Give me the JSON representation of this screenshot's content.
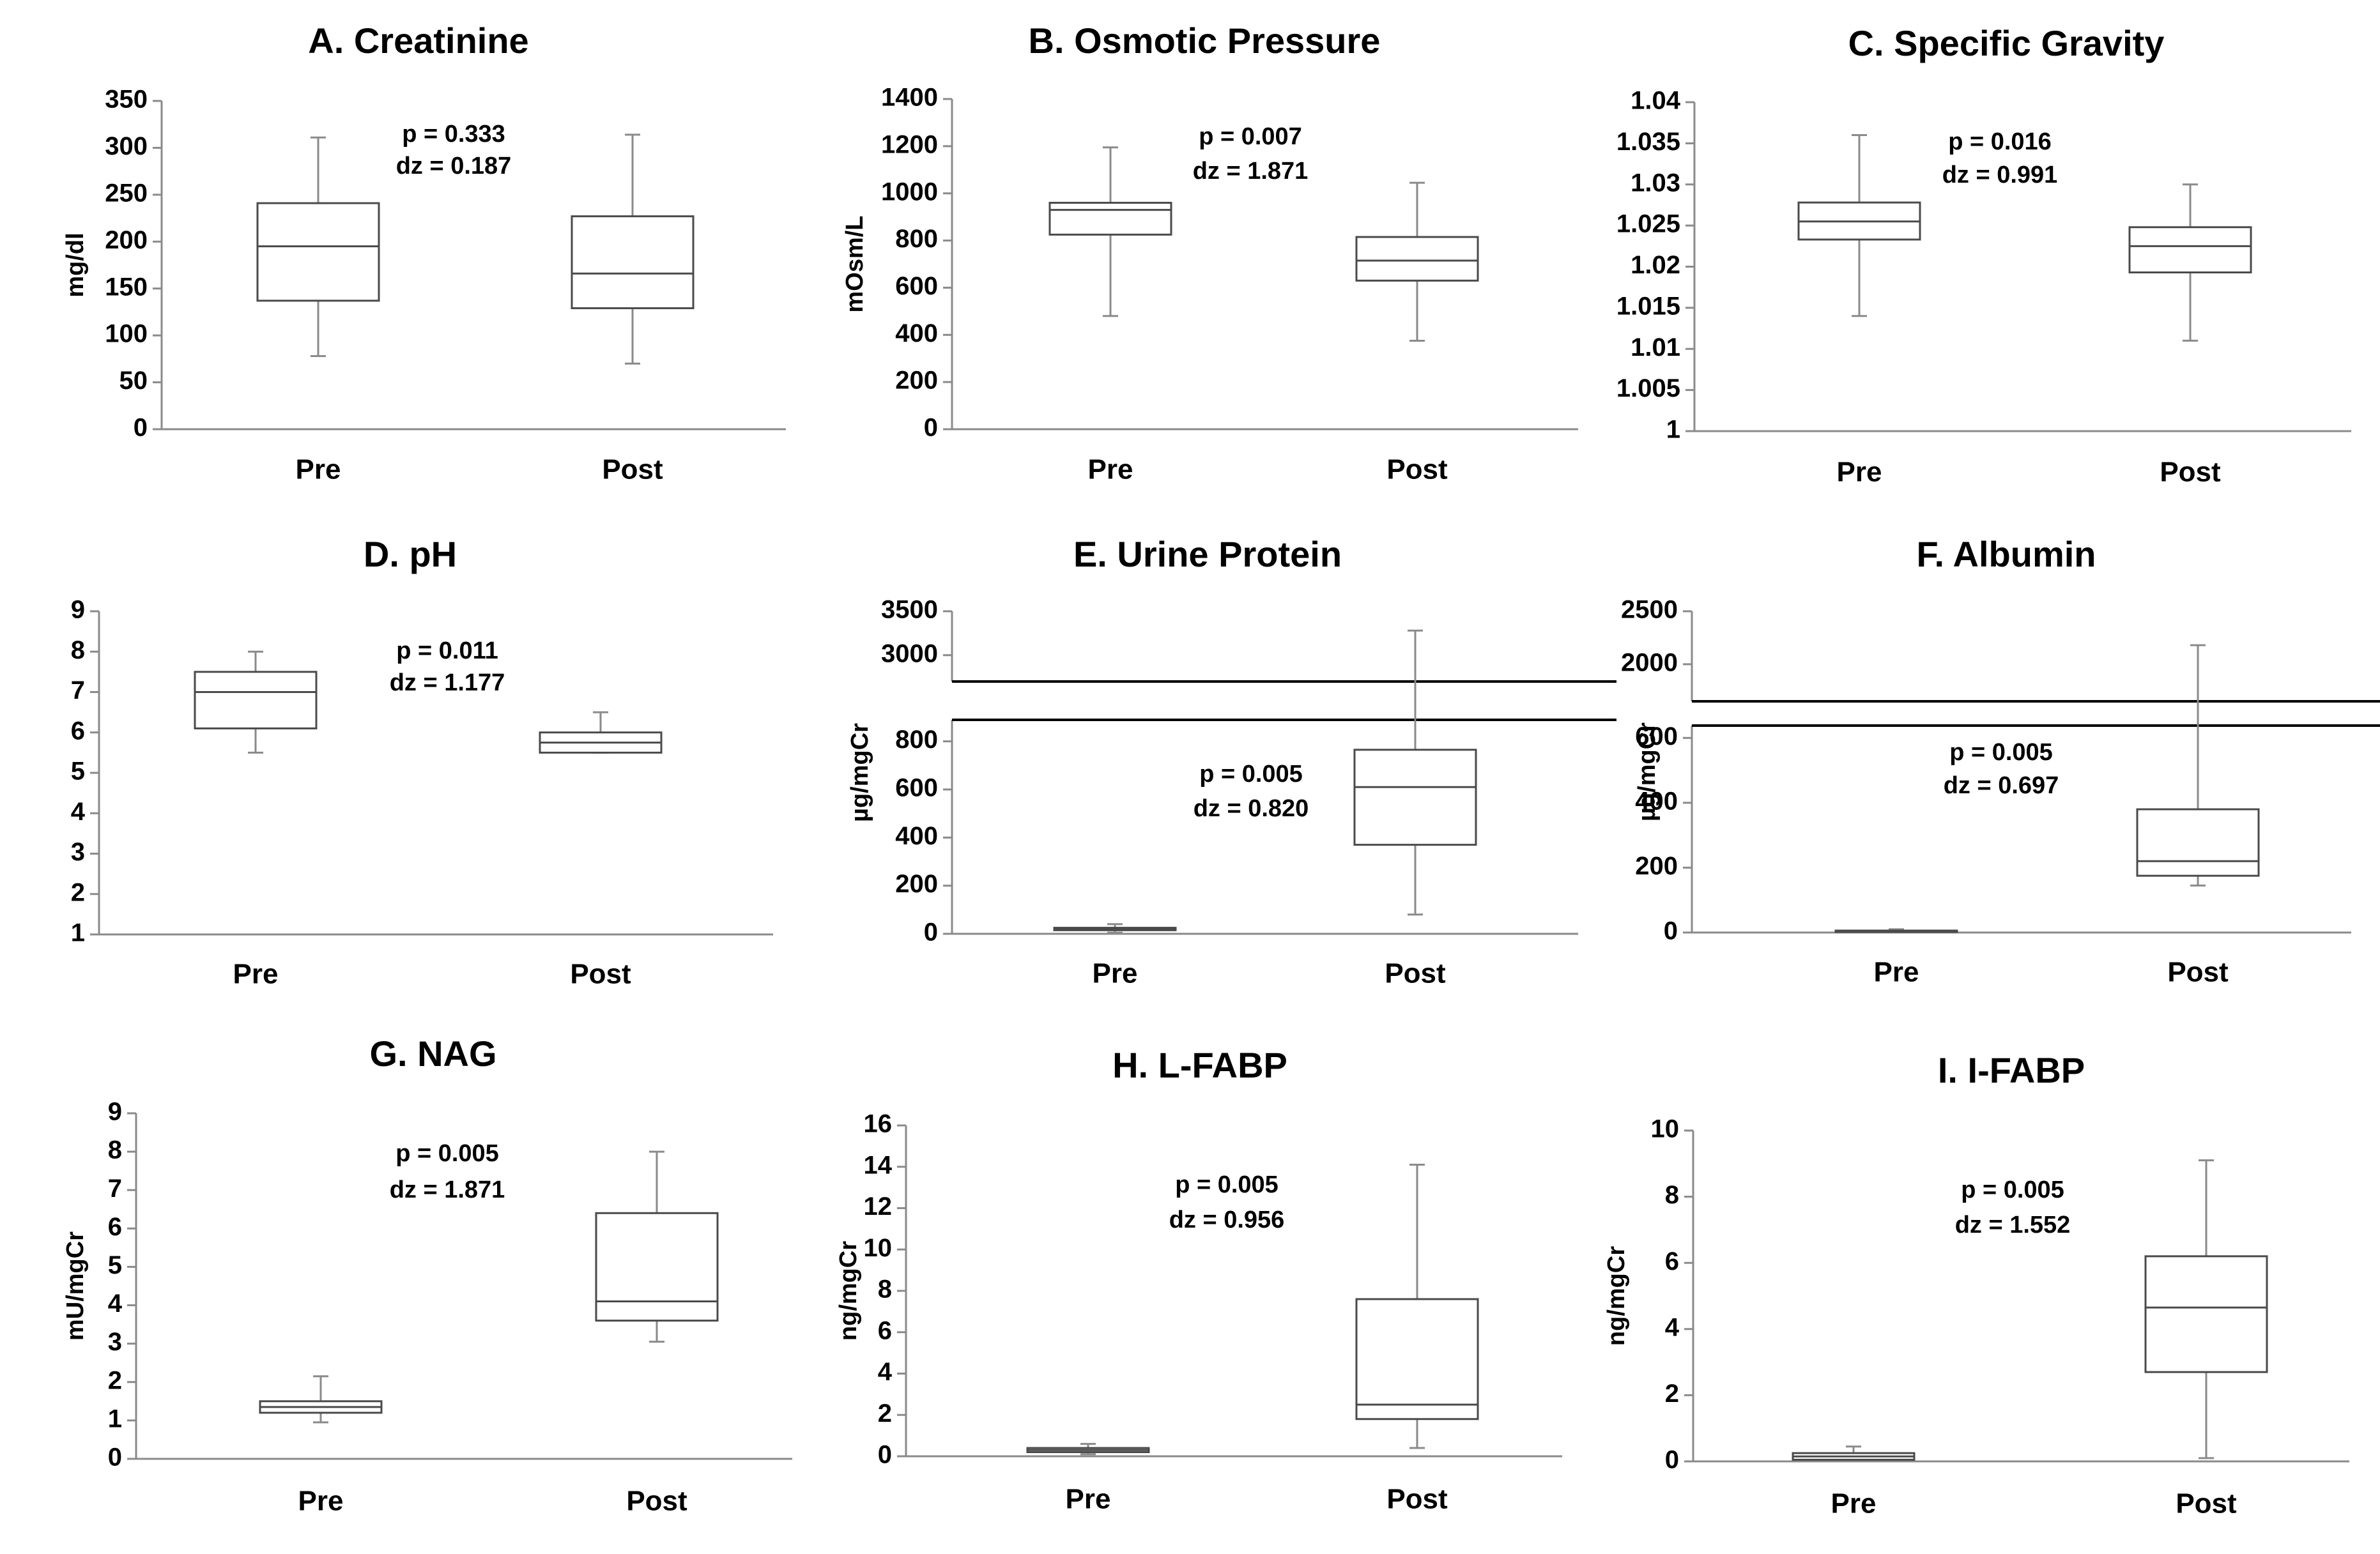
{
  "chart_data": [
    {
      "type": "box",
      "title": "A. Creatinine",
      "ylabel": "mg/dl",
      "categories": [
        "Pre",
        "Post"
      ],
      "ylim": [
        0,
        350
      ],
      "yticks": [
        "0",
        "50",
        "100",
        "150",
        "200",
        "250",
        "300",
        "350"
      ],
      "series": [
        {
          "name": "Pre",
          "min": 78,
          "q1": 137,
          "median": 195,
          "q3": 241,
          "max": 311
        },
        {
          "name": "Post",
          "min": 70,
          "q1": 129,
          "median": 166,
          "q3": 227,
          "max": 314
        }
      ],
      "annotation": [
        "p = 0.333",
        "dz = 0.187"
      ]
    },
    {
      "type": "box",
      "title": "B. Osmotic Pressure",
      "ylabel": "mOsm/L",
      "categories": [
        "Pre",
        "Post"
      ],
      "ylim": [
        0,
        1400
      ],
      "yticks": [
        "0",
        "200",
        "400",
        "600",
        "800",
        "1000",
        "1200",
        "1400"
      ],
      "series": [
        {
          "name": "Pre",
          "min": 480,
          "q1": 825,
          "median": 930,
          "q3": 960,
          "max": 1195
        },
        {
          "name": "Post",
          "min": 375,
          "q1": 630,
          "median": 715,
          "q3": 815,
          "max": 1045
        }
      ],
      "annotation": [
        "p = 0.007",
        "dz = 1.871"
      ]
    },
    {
      "type": "box",
      "title": "C. Specific Gravity",
      "ylabel": "",
      "categories": [
        "Pre",
        "Post"
      ],
      "ylim": [
        1,
        1.04
      ],
      "yticks": [
        "1",
        "1.005",
        "1.01",
        "1.015",
        "1.02",
        "1.025",
        "1.03",
        "1.035",
        "1.04"
      ],
      "series": [
        {
          "name": "Pre",
          "min": 1.014,
          "q1": 1.0233,
          "median": 1.0255,
          "q3": 1.0278,
          "max": 1.036
        },
        {
          "name": "Post",
          "min": 1.011,
          "q1": 1.0193,
          "median": 1.0225,
          "q3": 1.0248,
          "max": 1.03
        }
      ],
      "annotation": [
        "p = 0.016",
        "dz = 0.991"
      ]
    },
    {
      "type": "box",
      "title": "D. pH",
      "ylabel": "",
      "categories": [
        "Pre",
        "Post"
      ],
      "ylim": [
        1,
        9
      ],
      "yticks": [
        "1",
        "2",
        "3",
        "4",
        "5",
        "6",
        "7",
        "8",
        "9"
      ],
      "series": [
        {
          "name": "Pre",
          "min": 5.5,
          "q1": 6.1,
          "median": 7.0,
          "q3": 7.5,
          "max": 8.0
        },
        {
          "name": "Post",
          "min": 5.5,
          "q1": 5.5,
          "median": 5.75,
          "q3": 6.0,
          "max": 6.5
        }
      ],
      "annotation": [
        "p = 0.011",
        "dz = 1.177"
      ]
    },
    {
      "type": "box",
      "title": "E. Urine Protein",
      "ylabel": "µg/mgCr",
      "categories": [
        "Pre",
        "Post"
      ],
      "ylim": [
        0,
        900
      ],
      "upper_ylim": [
        2700,
        3500
      ],
      "yticks": [
        "0",
        "200",
        "400",
        "600",
        "800"
      ],
      "upper_yticks": [
        "3000",
        "3500"
      ],
      "series": [
        {
          "name": "Pre",
          "min": 5,
          "q1": 15,
          "median": 20,
          "q3": 25,
          "max": 40
        },
        {
          "name": "Post",
          "min": 80,
          "q1": 370,
          "median": 610,
          "q3": 765,
          "max": 3280
        }
      ],
      "annotation": [
        "p = 0.005",
        "dz = 0.820"
      ]
    },
    {
      "type": "box",
      "title": "F. Albumin",
      "ylabel": "µg/mgCr",
      "categories": [
        "Pre",
        "Post"
      ],
      "ylim": [
        0,
        640
      ],
      "upper_ylim": [
        1650,
        2500
      ],
      "yticks": [
        "0",
        "200",
        "400",
        "600"
      ],
      "upper_yticks": [
        "2000",
        "2500"
      ],
      "series": [
        {
          "name": "Pre",
          "min": 0,
          "q1": 2,
          "median": 4,
          "q3": 6,
          "max": 10
        },
        {
          "name": "Post",
          "min": 145,
          "q1": 175,
          "median": 220,
          "q3": 380,
          "max": 2180
        }
      ],
      "annotation": [
        "p = 0.005",
        "dz = 0.697"
      ]
    },
    {
      "type": "box",
      "title": "G. NAG",
      "ylabel": "mU/mgCr",
      "categories": [
        "Pre",
        "Post"
      ],
      "ylim": [
        0,
        9
      ],
      "yticks": [
        "0",
        "1",
        "2",
        "3",
        "4",
        "5",
        "6",
        "7",
        "8",
        "9"
      ],
      "series": [
        {
          "name": "Pre",
          "min": 0.95,
          "q1": 1.2,
          "median": 1.35,
          "q3": 1.5,
          "max": 2.15
        },
        {
          "name": "Post",
          "min": 3.05,
          "q1": 3.6,
          "median": 4.1,
          "q3": 6.4,
          "max": 8.0
        }
      ],
      "annotation": [
        "p = 0.005",
        "dz = 1.871"
      ]
    },
    {
      "type": "box",
      "title": "H. L-FABP",
      "ylabel": "ng/mgCr",
      "categories": [
        "Pre",
        "Post"
      ],
      "ylim": [
        0,
        16
      ],
      "yticks": [
        "0",
        "2",
        "4",
        "6",
        "8",
        "10",
        "12",
        "14",
        "16"
      ],
      "series": [
        {
          "name": "Pre",
          "min": 0.1,
          "q1": 0.2,
          "median": 0.3,
          "q3": 0.4,
          "max": 0.6
        },
        {
          "name": "Post",
          "min": 0.4,
          "q1": 1.8,
          "median": 2.5,
          "q3": 7.6,
          "max": 14.1
        }
      ],
      "annotation": [
        "p = 0.005",
        "dz = 0.956"
      ]
    },
    {
      "type": "box",
      "title": "I. I-FABP",
      "ylabel": "ng/mgCr",
      "categories": [
        "Pre",
        "Post"
      ],
      "ylim": [
        0,
        10
      ],
      "yticks": [
        "0",
        "2",
        "4",
        "6",
        "8",
        "10"
      ],
      "series": [
        {
          "name": "Pre",
          "min": 0.0,
          "q1": 0.05,
          "median": 0.15,
          "q3": 0.25,
          "max": 0.45
        },
        {
          "name": "Post",
          "min": 0.1,
          "q1": 2.7,
          "median": 4.65,
          "q3": 6.2,
          "max": 9.1
        }
      ],
      "annotation": [
        "p = 0.005",
        "dz = 1.552"
      ]
    }
  ]
}
